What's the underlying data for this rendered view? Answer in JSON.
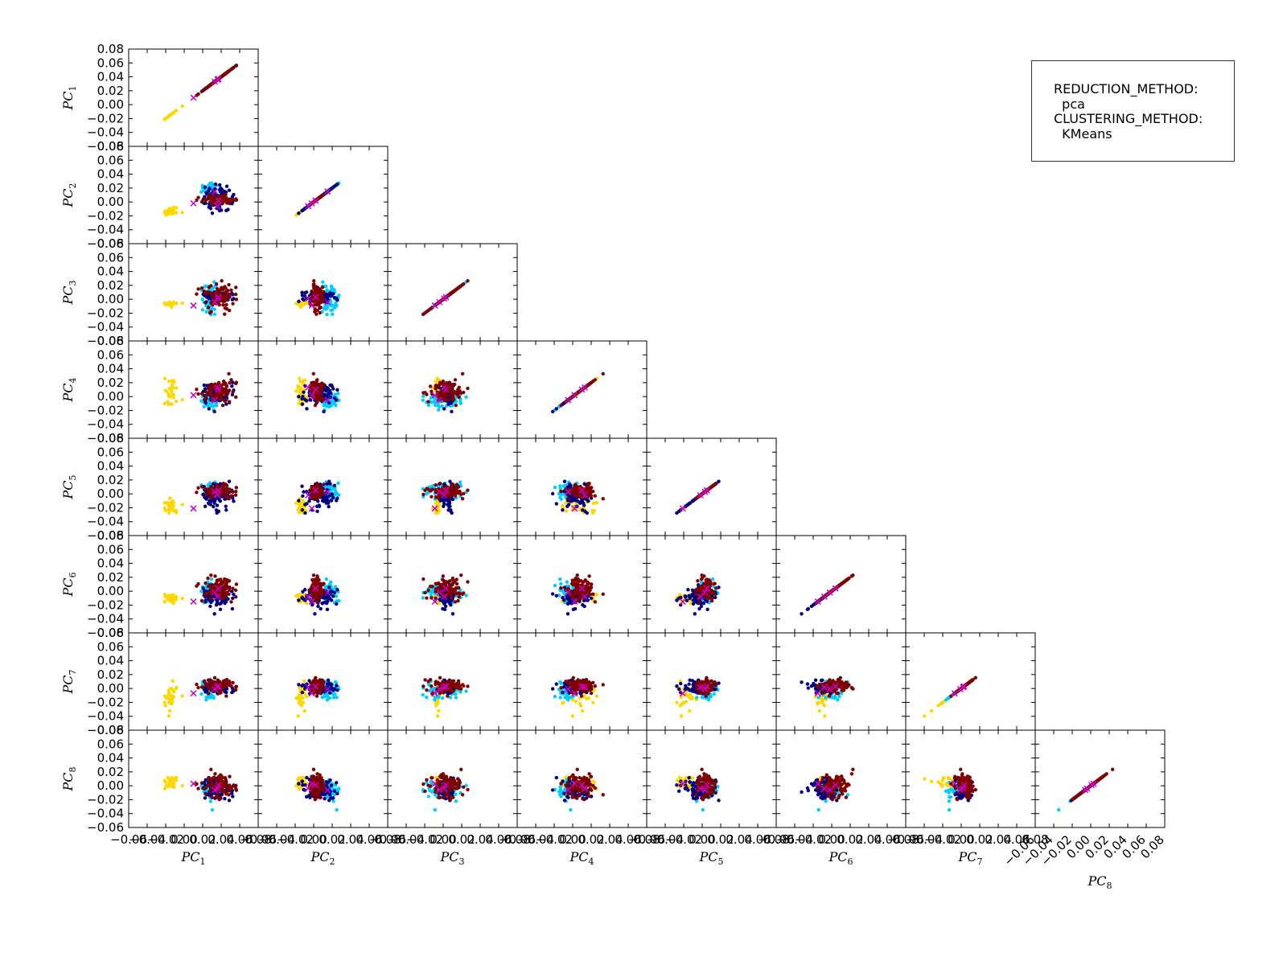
{
  "info_box": {
    "reduction_label": "REDUCTION_METHOD:",
    "reduction_value": "pca",
    "clustering_label": "CLUSTERING_METHOD:",
    "clustering_value": "KMeans"
  },
  "chart_data": {
    "type": "scatter",
    "layout": "lower-triangular scatter matrix",
    "n_components": 8,
    "variables": [
      "PC1",
      "PC2",
      "PC3",
      "PC4",
      "PC5",
      "PC6",
      "PC7",
      "PC8"
    ],
    "xlim": [
      -0.06,
      0.08
    ],
    "ylim": [
      -0.06,
      0.08
    ],
    "ytick_labels": [
      "-0.06",
      "-0.04",
      "-0.02",
      "0.00",
      "0.02",
      "0.04",
      "0.06",
      "0.08"
    ],
    "xtick_labels": [
      "-0.06",
      "-0.04",
      "-0.02",
      "0.00",
      "0.02",
      "0.04",
      "0.06",
      "0.08"
    ],
    "colors": {
      "cluster_colors": [
        "#ffd700",
        "#00ccff",
        "#000080",
        "#800000"
      ],
      "centroid_color": "#cc00cc"
    },
    "clusters": [
      {
        "cluster": 0,
        "color": "#ffd700",
        "size": 30,
        "center": [
          -0.0145,
          -0.0129,
          -0.0061,
          0.0075,
          -0.0166,
          -0.01,
          -0.0132,
          0.0041
        ],
        "spread": [
          0.0045,
          0.0034,
          0.0013,
          0.0109,
          0.0057,
          0.0043,
          0.0103,
          0.0051
        ]
      },
      {
        "cluster": 1,
        "color": "#00ccff",
        "size": 60,
        "center": [
          0.0285,
          0.0181,
          0.0022,
          -0.0055,
          0.004,
          -0.0013,
          -0.0026,
          -0.0069
        ],
        "spread": [
          0.004,
          0.0045,
          0.0096,
          0.0059,
          0.0054,
          0.008,
          0.0067,
          0.0066
        ]
      },
      {
        "cluster": 2,
        "color": "#000080",
        "size": 90,
        "center": [
          0.0369,
          0.0057,
          0.0043,
          0.0033,
          -0.0031,
          -0.0075,
          0.0011,
          -0.005
        ],
        "spread": [
          0.0079,
          0.0094,
          0.0035,
          0.0083,
          0.0097,
          0.0065,
          0.0036,
          0.0076
        ]
      },
      {
        "cluster": 3,
        "color": "#800000",
        "size": 90,
        "center": [
          0.0369,
          0.0034,
          0.0046,
          0.0071,
          0.0045,
          0.0046,
          0.0044,
          0.0005
        ],
        "spread": [
          0.0085,
          0.003,
          0.0099,
          0.0075,
          0.0047,
          0.0091,
          0.0049,
          0.0096
        ]
      }
    ],
    "centroids": [
      {
        "cluster": 0,
        "values": [
          0.01,
          -0.002,
          -0.009,
          0.002,
          -0.021,
          -0.015,
          -0.007,
          0.003
        ]
      },
      {
        "cluster": 1,
        "values": [
          0.033,
          0.015,
          -0.004,
          -0.005,
          0.003,
          -0.002,
          -0.001,
          -0.006
        ]
      },
      {
        "cluster": 2,
        "values": [
          0.036,
          -0.006,
          0.001,
          0.013,
          -0.002,
          -0.008,
          0.002,
          -0.004
        ]
      },
      {
        "cluster": 3,
        "values": [
          0.037,
          0.002,
          0.003,
          0.01,
          0.005,
          0.004,
          0.003,
          0.001
        ]
      }
    ]
  }
}
